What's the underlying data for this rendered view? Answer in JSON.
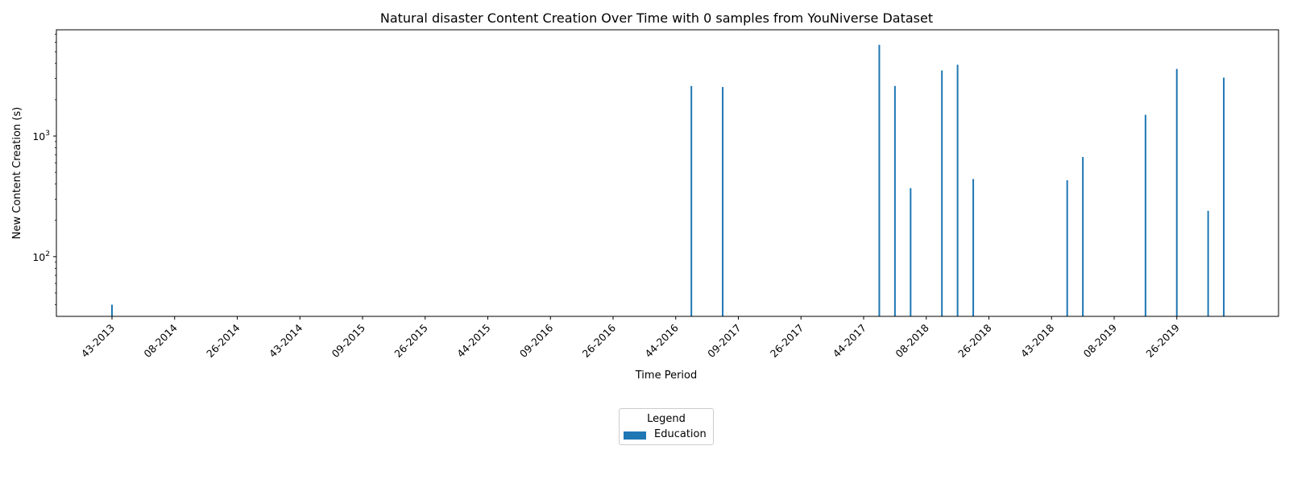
{
  "chart_data": {
    "type": "bar",
    "title": "Natural disaster Content Creation Over Time with 0 samples from YouNiverse Dataset",
    "xlabel": "Time Period",
    "ylabel": "New Content Creation (s)",
    "yscale": "log",
    "ylim": [
      32,
      7600
    ],
    "ytick_labels": [
      {
        "value": 100,
        "base": "10",
        "exp": "2"
      },
      {
        "value": 1000,
        "base": "10",
        "exp": "3"
      }
    ],
    "xtick_labels": [
      "43-2013",
      "08-2014",
      "26-2014",
      "43-2014",
      "09-2015",
      "26-2015",
      "44-2015",
      "09-2016",
      "26-2016",
      "44-2016",
      "09-2017",
      "26-2017",
      "44-2017",
      "08-2018",
      "26-2018",
      "43-2018",
      "08-2019",
      "26-2019"
    ],
    "grid": false,
    "legend": {
      "title": "Legend",
      "placement": "bottom-center",
      "entries": [
        "Education"
      ]
    },
    "series": [
      {
        "name": "Education",
        "color": "#1f77b4",
        "points": [
          {
            "t": 0.0,
            "v": 40
          },
          {
            "t": 9.25,
            "v": 2600
          },
          {
            "t": 9.75,
            "v": 2550
          },
          {
            "t": 12.25,
            "v": 5700
          },
          {
            "t": 12.5,
            "v": 2600
          },
          {
            "t": 12.75,
            "v": 370
          },
          {
            "t": 13.25,
            "v": 3500
          },
          {
            "t": 13.5,
            "v": 3900
          },
          {
            "t": 13.75,
            "v": 440
          },
          {
            "t": 15.25,
            "v": 430
          },
          {
            "t": 15.5,
            "v": 670
          },
          {
            "t": 16.5,
            "v": 1500
          },
          {
            "t": 17.0,
            "v": 3600
          },
          {
            "t": 17.5,
            "v": 240
          },
          {
            "t": 17.75,
            "v": 3050
          }
        ]
      }
    ]
  }
}
